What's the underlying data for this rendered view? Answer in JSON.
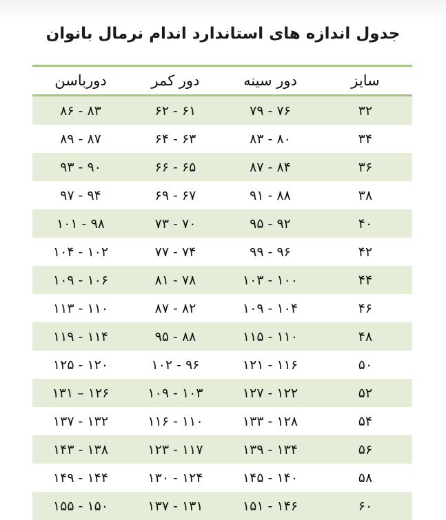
{
  "title": "جدول اندازه های استاندارد اندام نرمال بانوان",
  "colors": {
    "accent_line": "#a3c686",
    "row_stripe": "#e5edd8"
  },
  "headers": {
    "hip": "دورباسن",
    "waist": "دور کمر",
    "chest": "دور سینه",
    "size": "سایز"
  },
  "rows": [
    {
      "size": "۳۲",
      "chest": "۷۹ - ۷۶",
      "waist": "۶۲ - ۶۱",
      "hip": "۸۶ - ۸۳"
    },
    {
      "size": "۳۴",
      "chest": "۸۳ - ۸۰",
      "waist": "۶۴ - ۶۳",
      "hip": "۸۹ - ۸۷"
    },
    {
      "size": "۳۶",
      "chest": "۸۷ - ۸۴",
      "waist": "۶۶ - ۶۵",
      "hip": "۹۳ - ۹۰"
    },
    {
      "size": "۳۸",
      "chest": "۹۱ - ۸۸",
      "waist": "۶۹ - ۶۷",
      "hip": "۹۷ - ۹۴"
    },
    {
      "size": "۴۰",
      "chest": "۹۵ - ۹۲",
      "waist": "۷۳ - ۷۰",
      "hip": "۱۰۱ - ۹۸"
    },
    {
      "size": "۴۲",
      "chest": "۹۹ - ۹۶",
      "waist": "۷۷ - ۷۴",
      "hip": "۱۰۴ - ۱۰۲"
    },
    {
      "size": "۴۴",
      "chest": "۱۰۳ - ۱۰۰",
      "waist": "۸۱ - ۷۸",
      "hip": "۱۰۹ - ۱۰۶"
    },
    {
      "size": "۴۶",
      "chest": "۱۰۹ - ۱۰۴",
      "waist": "۸۷ - ۸۲",
      "hip": "۱۱۳ - ۱۱۰"
    },
    {
      "size": "۴۸",
      "chest": "۱۱۵ - ۱۱۰",
      "waist": "۹۵ - ۸۸",
      "hip": "۱۱۹ - ۱۱۴"
    },
    {
      "size": "۵۰",
      "chest": "۱۲۱ - ۱۱۶",
      "waist": "۱۰۲ - ۹۶",
      "hip": "۱۲۵ - ۱۲۰"
    },
    {
      "size": "۵۲",
      "chest": "۱۲۷ - ۱۲۲",
      "waist": "۱۰۹ - ۱۰۳",
      "hip": "۱۳۱ – ۱۲۶"
    },
    {
      "size": "۵۴",
      "chest": "۱۳۳ - ۱۲۸",
      "waist": "۱۱۶ - ۱۱۰",
      "hip": "۱۳۷ - ۱۳۲"
    },
    {
      "size": "۵۶",
      "chest": "۱۳۹ - ۱۳۴",
      "waist": "۱۲۳ - ۱۱۷",
      "hip": "۱۴۳ - ۱۳۸"
    },
    {
      "size": "۵۸",
      "chest": "۱۴۵ - ۱۴۰",
      "waist": "۱۳۰ - ۱۲۴",
      "hip": "۱۴۹ - ۱۴۴"
    },
    {
      "size": "۶۰",
      "chest": "۱۵۱ - ۱۴۶",
      "waist": "۱۳۷ - ۱۳۱",
      "hip": "۱۵۵ - ۱۵۰"
    }
  ]
}
